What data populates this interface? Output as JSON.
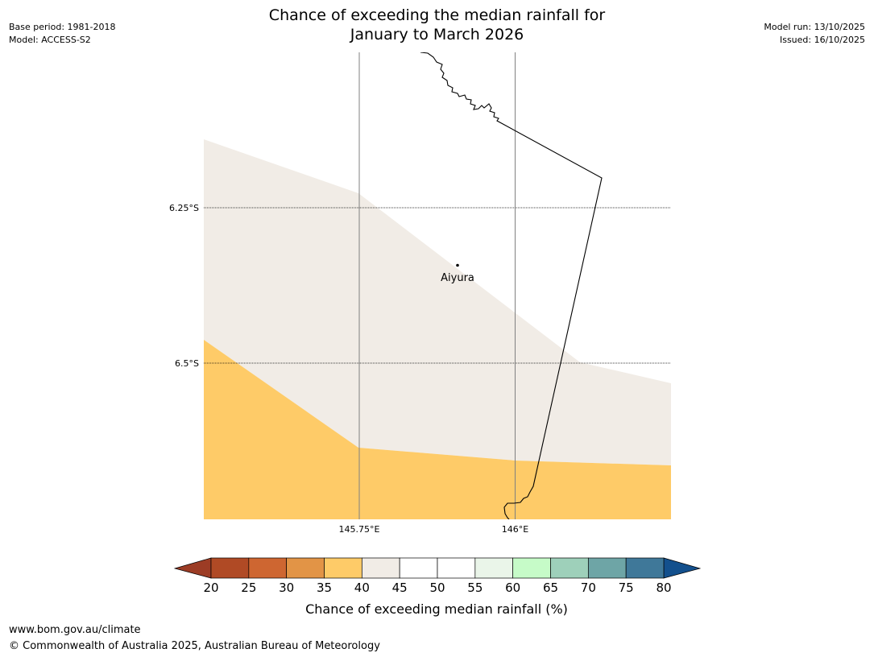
{
  "header": {
    "title_line1": "Chance of exceeding the median rainfall for",
    "title_line2": "January to March 2026",
    "base_period": "Base period: 1981-2018",
    "model": "Model: ACCESS-S2",
    "model_run": "Model run: 13/10/2025",
    "issued": "Issued: 16/10/2025"
  },
  "map": {
    "lat_labels": [
      "6.25°S",
      "6.5°S"
    ],
    "lon_labels": [
      "145.75°E",
      "146°E"
    ],
    "place": {
      "name": "Aiyura"
    },
    "colors": {
      "band_35_40": "#FECB68",
      "band_40_45": "#F1ECE6",
      "border": "#000000",
      "gridline": "#808080"
    }
  },
  "legend": {
    "title": "Chance of exceeding median rainfall (%)",
    "ticks": [
      "20",
      "25",
      "30",
      "35",
      "40",
      "45",
      "50",
      "55",
      "60",
      "65",
      "70",
      "75",
      "80"
    ],
    "under_color": "#9C3C25",
    "over_color": "#13508D",
    "colors": [
      "#B04A25",
      "#CE6631",
      "#E29446",
      "#FECB68",
      "#F1ECE6",
      "#FFFFFF",
      "#FFFFFF",
      "#EAF5E9",
      "#C6FBC8",
      "#9ED0BA",
      "#6EA5A6",
      "#3F7899"
    ]
  },
  "footer": {
    "url": "www.bom.gov.au/climate",
    "copyright": "© Commonwealth of Australia 2025, Australian Bureau of Meteorology"
  }
}
